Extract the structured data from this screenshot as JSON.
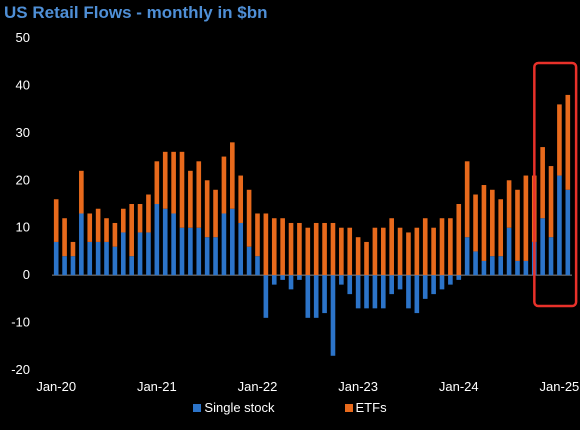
{
  "title": "US Retail Flows - monthly in $bn",
  "colors": {
    "single_stock": "#2c74c9",
    "etfs": "#e86a1c",
    "highlight_box": "#e8312a",
    "background": "#000000"
  },
  "chart_data": {
    "type": "bar",
    "stacked": true,
    "title": "US Retail Flows - monthly in $bn",
    "xlabel": "",
    "ylabel": "",
    "ylim": [
      -20,
      50
    ],
    "yticks": [
      50,
      40,
      30,
      20,
      10,
      0,
      -10,
      -20
    ],
    "xtick_labels": [
      "Jan-20",
      "Jan-21",
      "Jan-22",
      "Jan-23",
      "Jan-24",
      "Jan-25"
    ],
    "xtick_months": [
      "2020-01",
      "2021-01",
      "2022-01",
      "2023-01",
      "2024-01",
      "2025-01"
    ],
    "legend_position": "bottom",
    "grid": false,
    "highlight": {
      "from": "2024-11",
      "to": "2025-02"
    },
    "months": [
      "2020-01",
      "2020-02",
      "2020-03",
      "2020-04",
      "2020-05",
      "2020-06",
      "2020-07",
      "2020-08",
      "2020-09",
      "2020-10",
      "2020-11",
      "2020-12",
      "2021-01",
      "2021-02",
      "2021-03",
      "2021-04",
      "2021-05",
      "2021-06",
      "2021-07",
      "2021-08",
      "2021-09",
      "2021-10",
      "2021-11",
      "2021-12",
      "2022-01",
      "2022-02",
      "2022-03",
      "2022-04",
      "2022-05",
      "2022-06",
      "2022-07",
      "2022-08",
      "2022-09",
      "2022-10",
      "2022-11",
      "2022-12",
      "2023-01",
      "2023-02",
      "2023-03",
      "2023-04",
      "2023-05",
      "2023-06",
      "2023-07",
      "2023-08",
      "2023-09",
      "2023-10",
      "2023-11",
      "2023-12",
      "2024-01",
      "2024-02",
      "2024-03",
      "2024-04",
      "2024-05",
      "2024-06",
      "2024-07",
      "2024-08",
      "2024-09",
      "2024-10",
      "2024-11",
      "2024-12",
      "2025-01",
      "2025-02"
    ],
    "series": [
      {
        "name": "Single stock",
        "values": [
          7,
          4,
          4,
          13,
          7,
          7,
          7,
          6,
          9,
          4,
          9,
          9,
          15,
          14,
          13,
          10,
          10,
          10,
          8,
          8,
          13,
          14,
          11,
          6,
          4,
          -9,
          -2,
          -1,
          -3,
          -1,
          -9,
          -9,
          -8,
          -17,
          -2,
          -4,
          -7,
          -7,
          -7,
          -7,
          -4,
          -3,
          -7,
          -8,
          -5,
          -4,
          -3,
          -2,
          -1,
          8,
          5,
          3,
          4,
          4,
          10,
          3,
          3,
          7,
          12,
          8,
          21,
          18
        ]
      },
      {
        "name": "ETFs",
        "values": [
          9,
          8,
          3,
          9,
          6,
          7,
          5,
          5,
          5,
          11,
          6,
          8,
          9,
          12,
          13,
          16,
          12,
          14,
          12,
          10,
          12,
          14,
          10,
          12,
          9,
          13,
          12,
          12,
          11,
          11,
          10,
          11,
          11,
          11,
          10,
          10,
          8,
          7,
          10,
          10,
          12,
          10,
          9,
          10,
          12,
          10,
          12,
          12,
          15,
          16,
          12,
          16,
          14,
          12,
          10,
          15,
          18,
          14,
          15,
          15,
          15,
          20
        ]
      }
    ]
  }
}
